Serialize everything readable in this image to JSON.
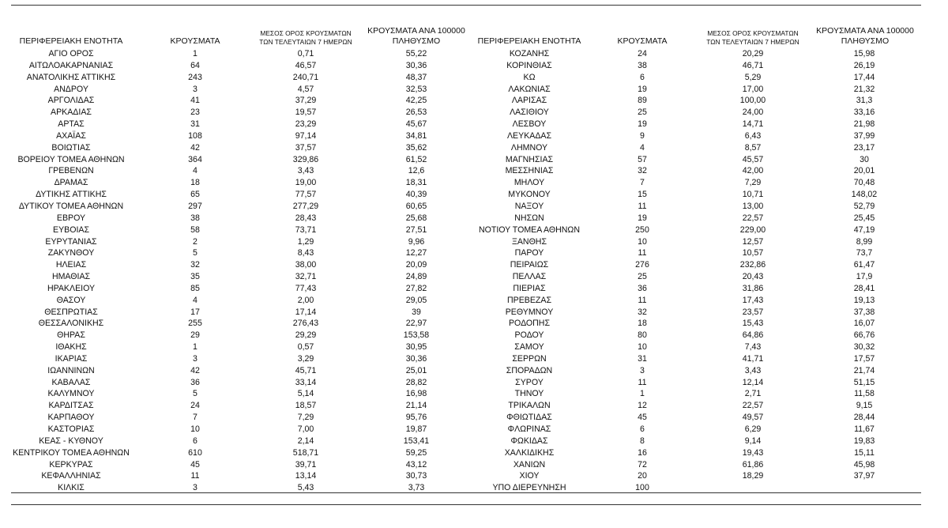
{
  "headers": {
    "region": "ΠΕΡΙΦΕΡΕΙΑΚΗ ΕΝΟΤΗΤΑ",
    "cases": "ΚΡΟΥΣΜΑΤΑ",
    "avg_line1": "ΜΕΣΟΣ ΟΡΟΣ ΚΡΟΥΣΜΑΤΩΝ",
    "avg_line2": "ΤΩΝ ΤΕΛΕΥΤΑΙΩΝ 7 ΗΜΕΡΩΝ",
    "per100k_line1": "ΚΡΟΥΣΜΑΤΑ ΑΝΑ 100000",
    "per100k_line2": "ΠΛΗΘΥΣΜΟ"
  },
  "rows": [
    {
      "left": [
        "ΑΓΙΟ ΟΡΟΣ",
        "1",
        "0,71",
        "55,22"
      ],
      "right": [
        "ΚΟΖΑΝΗΣ",
        "24",
        "20,29",
        "15,98"
      ]
    },
    {
      "left": [
        "ΑΙΤΩΛΟΑΚΑΡΝΑΝΙΑΣ",
        "64",
        "46,57",
        "30,36"
      ],
      "right": [
        "ΚΟΡΙΝΘΙΑΣ",
        "38",
        "46,71",
        "26,19"
      ]
    },
    {
      "left": [
        "ΑΝΑΤΟΛΙΚΗΣ ΑΤΤΙΚΗΣ",
        "243",
        "240,71",
        "48,37"
      ],
      "right": [
        "ΚΩ",
        "6",
        "5,29",
        "17,44"
      ]
    },
    {
      "left": [
        "ΑΝΔΡΟΥ",
        "3",
        "4,57",
        "32,53"
      ],
      "right": [
        "ΛΑΚΩΝΙΑΣ",
        "19",
        "17,00",
        "21,32"
      ]
    },
    {
      "left": [
        "ΑΡΓΟΛΙΔΑΣ",
        "41",
        "37,29",
        "42,25"
      ],
      "right": [
        "ΛΑΡΙΣΑΣ",
        "89",
        "100,00",
        "31,3"
      ]
    },
    {
      "left": [
        "ΑΡΚΑΔΙΑΣ",
        "23",
        "19,57",
        "26,53"
      ],
      "right": [
        "ΛΑΣΙΘΙΟΥ",
        "25",
        "24,00",
        "33,16"
      ]
    },
    {
      "left": [
        "ΑΡΤΑΣ",
        "31",
        "23,29",
        "45,67"
      ],
      "right": [
        "ΛΕΣΒΟΥ",
        "19",
        "14,71",
        "21,98"
      ]
    },
    {
      "left": [
        "ΑΧΑΪΑΣ",
        "108",
        "97,14",
        "34,81"
      ],
      "right": [
        "ΛΕΥΚΑΔΑΣ",
        "9",
        "6,43",
        "37,99"
      ]
    },
    {
      "left": [
        "ΒΟΙΩΤΙΑΣ",
        "42",
        "37,57",
        "35,62"
      ],
      "right": [
        "ΛΗΜΝΟΥ",
        "4",
        "8,57",
        "23,17"
      ]
    },
    {
      "left": [
        "ΒΟΡΕΙΟΥ ΤΟΜΕΑ ΑΘΗΝΩΝ",
        "364",
        "329,86",
        "61,52"
      ],
      "right": [
        "ΜΑΓΝΗΣΙΑΣ",
        "57",
        "45,57",
        "30"
      ]
    },
    {
      "left": [
        "ΓΡΕΒΕΝΩΝ",
        "4",
        "3,43",
        "12,6"
      ],
      "right": [
        "ΜΕΣΣΗΝΙΑΣ",
        "32",
        "42,00",
        "20,01"
      ]
    },
    {
      "left": [
        "ΔΡΑΜΑΣ",
        "18",
        "19,00",
        "18,31"
      ],
      "right": [
        "ΜΗΛΟΥ",
        "7",
        "7,29",
        "70,48"
      ]
    },
    {
      "left": [
        "ΔΥΤΙΚΗΣ ΑΤΤΙΚΗΣ",
        "65",
        "77,57",
        "40,39"
      ],
      "right": [
        "ΜΥΚΟΝΟΥ",
        "15",
        "10,71",
        "148,02"
      ]
    },
    {
      "left": [
        "ΔΥΤΙΚΟΥ ΤΟΜΕΑ ΑΘΗΝΩΝ",
        "297",
        "277,29",
        "60,65"
      ],
      "right": [
        "ΝΑΞΟΥ",
        "11",
        "13,00",
        "52,79"
      ]
    },
    {
      "left": [
        "ΕΒΡΟΥ",
        "38",
        "28,43",
        "25,68"
      ],
      "right": [
        "ΝΗΣΩΝ",
        "19",
        "22,57",
        "25,45"
      ]
    },
    {
      "left": [
        "ΕΥΒΟΙΑΣ",
        "58",
        "73,71",
        "27,51"
      ],
      "right": [
        "ΝΟΤΙΟΥ ΤΟΜΕΑ ΑΘΗΝΩΝ",
        "250",
        "229,00",
        "47,19"
      ]
    },
    {
      "left": [
        "ΕΥΡΥΤΑΝΙΑΣ",
        "2",
        "1,29",
        "9,96"
      ],
      "right": [
        "ΞΑΝΘΗΣ",
        "10",
        "12,57",
        "8,99"
      ]
    },
    {
      "left": [
        "ΖΑΚΥΝΘΟΥ",
        "5",
        "8,43",
        "12,27"
      ],
      "right": [
        "ΠΑΡΟΥ",
        "11",
        "10,57",
        "73,7"
      ]
    },
    {
      "left": [
        "ΗΛΕΙΑΣ",
        "32",
        "38,00",
        "20,09"
      ],
      "right": [
        "ΠΕΙΡΑΙΩΣ",
        "276",
        "232,86",
        "61,47"
      ]
    },
    {
      "left": [
        "ΗΜΑΘΙΑΣ",
        "35",
        "32,71",
        "24,89"
      ],
      "right": [
        "ΠΕΛΛΑΣ",
        "25",
        "20,43",
        "17,9"
      ]
    },
    {
      "left": [
        "ΗΡΑΚΛΕΙΟΥ",
        "85",
        "77,43",
        "27,82"
      ],
      "right": [
        "ΠΙΕΡΙΑΣ",
        "36",
        "31,86",
        "28,41"
      ]
    },
    {
      "left": [
        "ΘΑΣΟΥ",
        "4",
        "2,00",
        "29,05"
      ],
      "right": [
        "ΠΡΕΒΕΖΑΣ",
        "11",
        "17,43",
        "19,13"
      ]
    },
    {
      "left": [
        "ΘΕΣΠΡΩΤΙΑΣ",
        "17",
        "17,14",
        "39"
      ],
      "right": [
        "ΡΕΘΥΜΝΟΥ",
        "32",
        "23,57",
        "37,38"
      ]
    },
    {
      "left": [
        "ΘΕΣΣΑΛΟΝΙΚΗΣ",
        "255",
        "276,43",
        "22,97"
      ],
      "right": [
        "ΡΟΔΟΠΗΣ",
        "18",
        "15,43",
        "16,07"
      ]
    },
    {
      "left": [
        "ΘΗΡΑΣ",
        "29",
        "29,29",
        "153,58"
      ],
      "right": [
        "ΡΟΔΟΥ",
        "80",
        "64,86",
        "66,76"
      ]
    },
    {
      "left": [
        "ΙΘΑΚΗΣ",
        "1",
        "0,57",
        "30,95"
      ],
      "right": [
        "ΣΑΜΟΥ",
        "10",
        "7,43",
        "30,32"
      ]
    },
    {
      "left": [
        "ΙΚΑΡΙΑΣ",
        "3",
        "3,29",
        "30,36"
      ],
      "right": [
        "ΣΕΡΡΩΝ",
        "31",
        "41,71",
        "17,57"
      ]
    },
    {
      "left": [
        "ΙΩΑΝΝΙΝΩΝ",
        "42",
        "45,71",
        "25,01"
      ],
      "right": [
        "ΣΠΟΡΑΔΩΝ",
        "3",
        "3,43",
        "21,74"
      ]
    },
    {
      "left": [
        "ΚΑΒΑΛΑΣ",
        "36",
        "33,14",
        "28,82"
      ],
      "right": [
        "ΣΥΡΟΥ",
        "11",
        "12,14",
        "51,15"
      ]
    },
    {
      "left": [
        "ΚΑΛΥΜΝΟΥ",
        "5",
        "5,14",
        "16,98"
      ],
      "right": [
        "ΤΗΝΟΥ",
        "1",
        "2,71",
        "11,58"
      ]
    },
    {
      "left": [
        "ΚΑΡΔΙΤΣΑΣ",
        "24",
        "18,57",
        "21,14"
      ],
      "right": [
        "ΤΡΙΚΑΛΩΝ",
        "12",
        "22,57",
        "9,15"
      ]
    },
    {
      "left": [
        "ΚΑΡΠΑΘΟΥ",
        "7",
        "7,29",
        "95,76"
      ],
      "right": [
        "ΦΘΙΩΤΙΔΑΣ",
        "45",
        "49,57",
        "28,44"
      ]
    },
    {
      "left": [
        "ΚΑΣΤΟΡΙΑΣ",
        "10",
        "7,00",
        "19,87"
      ],
      "right": [
        "ΦΛΩΡΙΝΑΣ",
        "6",
        "6,29",
        "11,67"
      ]
    },
    {
      "left": [
        "ΚΕΑΣ - ΚΥΘΝΟΥ",
        "6",
        "2,14",
        "153,41"
      ],
      "right": [
        "ΦΩΚΙΔΑΣ",
        "8",
        "9,14",
        "19,83"
      ]
    },
    {
      "left": [
        "ΚΕΝΤΡΙΚΟΥ ΤΟΜΕΑ ΑΘΗΝΩΝ",
        "610",
        "518,71",
        "59,25"
      ],
      "right": [
        "ΧΑΛΚΙΔΙΚΗΣ",
        "16",
        "19,43",
        "15,11"
      ]
    },
    {
      "left": [
        "ΚΕΡΚΥΡΑΣ",
        "45",
        "39,71",
        "43,12"
      ],
      "right": [
        "ΧΑΝΙΩΝ",
        "72",
        "61,86",
        "45,98"
      ]
    },
    {
      "left": [
        "ΚΕΦΑΛΛΗΝΙΑΣ",
        "11",
        "13,14",
        "30,73"
      ],
      "right": [
        "ΧΙΟΥ",
        "20",
        "18,29",
        "37,97"
      ]
    },
    {
      "left": [
        "ΚΙΛΚΙΣ",
        "3",
        "5,43",
        "3,73"
      ],
      "right": [
        "ΥΠΟ ΔΙΕΡΕΥΝΗΣΗ",
        "100",
        "",
        ""
      ]
    }
  ]
}
